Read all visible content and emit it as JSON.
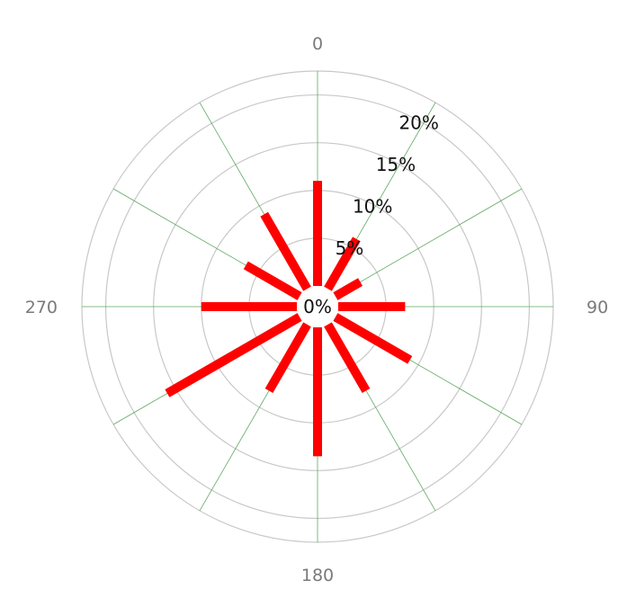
{
  "chart_data": {
    "type": "polar-bar",
    "units": "%",
    "directions": [
      0,
      30,
      60,
      90,
      120,
      150,
      180,
      210,
      240,
      270,
      300,
      330
    ],
    "values": [
      11,
      6,
      3,
      7,
      9,
      8,
      13.5,
      8,
      16,
      10,
      6.5,
      9
    ],
    "radial_ticks": [
      0,
      5,
      10,
      15,
      20
    ],
    "radial_tick_labels": [
      "0%",
      "5%",
      "10%",
      "15%",
      "20%"
    ],
    "rmax": 22.5,
    "angle_labels": [
      "0",
      "90",
      "180",
      "270"
    ],
    "grid": true,
    "colors": {
      "bar": "#ff0000",
      "ring": "#c8c8c8",
      "spoke": "#5fa85f",
      "angle_label": "#7a7a7a",
      "radial_label": "#111111"
    }
  }
}
